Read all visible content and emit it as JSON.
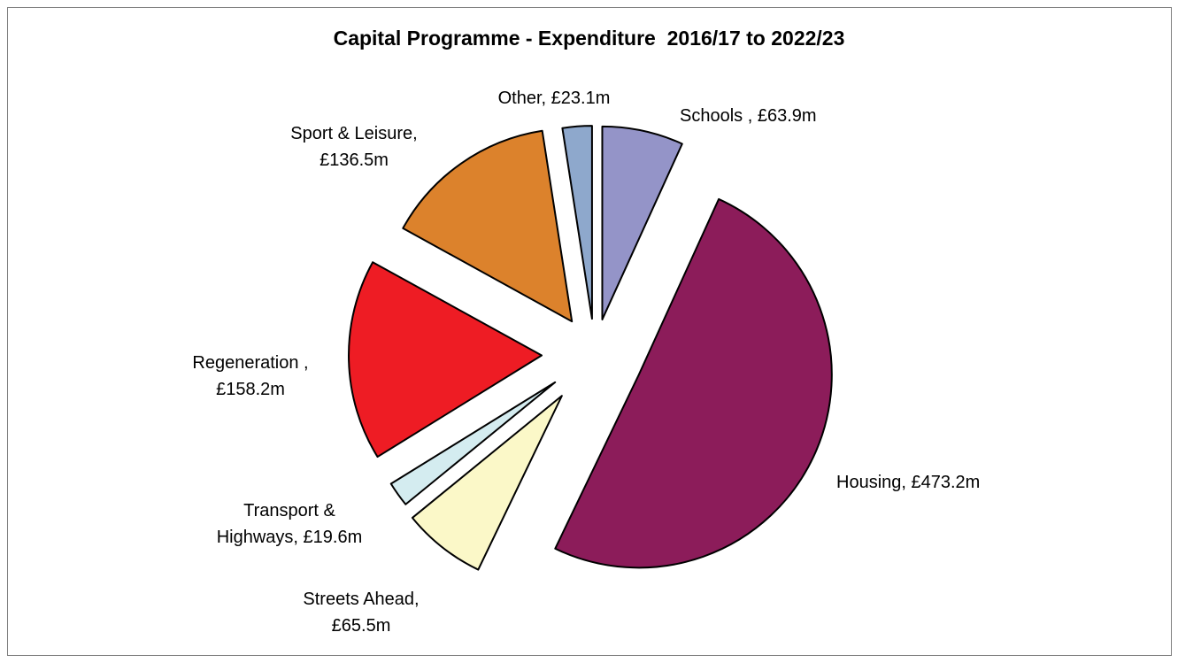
{
  "chart_data": {
    "type": "pie",
    "title": "Capital Programme - Expenditure  2016/17 to 2022/23",
    "values": [
      63.9,
      473.2,
      65.5,
      19.6,
      158.2,
      136.5,
      23.1
    ],
    "value_labels": [
      "Schools , £63.9m",
      "Housing, £473.2m",
      "Streets Ahead, £65.5m",
      "Transport & Highways, £19.6m",
      "Regeneration , £158.2m",
      "Sport & Leisure, £136.5m",
      "Other, £23.1m"
    ],
    "colors": [
      "#9494c8",
      "#8c1c5a",
      "#fbf8c8",
      "#d4ecf0",
      "#ee1c24",
      "#dc822c",
      "#8ea8cc"
    ]
  }
}
